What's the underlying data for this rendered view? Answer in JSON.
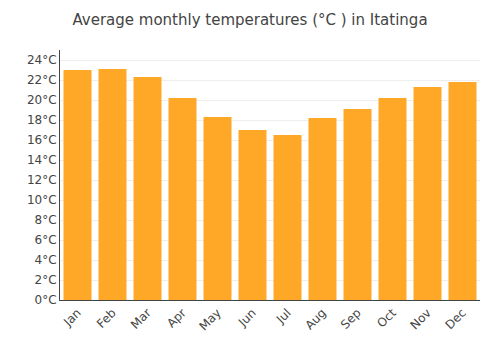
{
  "chart_data": {
    "type": "bar",
    "title": "Average monthly temperatures (°C ) in Itatinga",
    "categories": [
      "Jan",
      "Feb",
      "Mar",
      "Apr",
      "May",
      "Jun",
      "Jul",
      "Aug",
      "Sep",
      "Oct",
      "Nov",
      "Dec"
    ],
    "values": [
      23.0,
      23.1,
      22.3,
      20.2,
      18.3,
      17.0,
      16.5,
      18.2,
      19.1,
      20.2,
      21.3,
      21.8
    ],
    "color": "#FFA726",
    "ylim": [
      0,
      25
    ],
    "yticks": [
      {
        "value": 0,
        "label": "0°C"
      },
      {
        "value": 2,
        "label": "2°C"
      },
      {
        "value": 4,
        "label": "4°C"
      },
      {
        "value": 6,
        "label": "6°C"
      },
      {
        "value": 8,
        "label": "8°C"
      },
      {
        "value": 10,
        "label": "10°C"
      },
      {
        "value": 12,
        "label": "12°C"
      },
      {
        "value": 14,
        "label": "14°C"
      },
      {
        "value": 16,
        "label": "16°C"
      },
      {
        "value": 18,
        "label": "18°C"
      },
      {
        "value": 20,
        "label": "20°C"
      },
      {
        "value": 22,
        "label": "22°C"
      },
      {
        "value": 24,
        "label": "24°C"
      }
    ],
    "grid": true
  }
}
